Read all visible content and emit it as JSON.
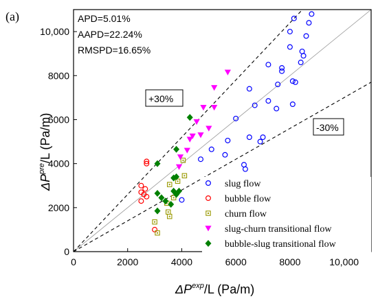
{
  "panel_label": "(a)",
  "stats": {
    "apd": "APD=5.01%",
    "aapd": "AAPD=22.24%",
    "rmspd": "RMSPD=16.65%"
  },
  "band_labels": {
    "upper": "+30%",
    "lower": "-30%"
  },
  "axes": {
    "x_label": {
      "prefix": "ΔP",
      "sup": "exp",
      "suffix": "/L (Pa/m)"
    },
    "y_label": {
      "prefix": "ΔP",
      "sup": "pre",
      "suffix": "/L (Pa/m)"
    }
  },
  "chart_data": {
    "type": "scatter",
    "xlim": [
      0,
      11000
    ],
    "ylim": [
      0,
      11000
    ],
    "x_ticks": [
      0,
      2000,
      4000,
      6000,
      8000,
      10000
    ],
    "y_ticks": [
      0,
      2000,
      4000,
      6000,
      8000,
      10000
    ],
    "x_tick_labels": [
      "0",
      "2000",
      "4000",
      "6000",
      "8000",
      "10,000"
    ],
    "y_tick_labels": [
      "0",
      "2000",
      "4000",
      "6000",
      "8000",
      "10,000"
    ],
    "reference_lines": [
      {
        "label": "",
        "slope": 1.0,
        "style": "solid"
      },
      {
        "label": "+30%",
        "slope": 1.3,
        "style": "dashed"
      },
      {
        "label": "-30%",
        "slope": 0.7,
        "style": "dashed"
      }
    ],
    "legend_position": "bottom-right",
    "series": [
      {
        "name": "slug flow",
        "marker": "circle-open",
        "color": "#0000ff",
        "points": [
          [
            4000,
            2350
          ],
          [
            4900,
            3100
          ],
          [
            5100,
            3150
          ],
          [
            4700,
            4200
          ],
          [
            5100,
            4650
          ],
          [
            5600,
            4400
          ],
          [
            5700,
            5050
          ],
          [
            6000,
            6050
          ],
          [
            6300,
            3950
          ],
          [
            6350,
            3750
          ],
          [
            6500,
            5200
          ],
          [
            6500,
            7400
          ],
          [
            6700,
            6650
          ],
          [
            6900,
            5000
          ],
          [
            7000,
            5200
          ],
          [
            7200,
            6850
          ],
          [
            7200,
            8500
          ],
          [
            7500,
            6500
          ],
          [
            7550,
            7600
          ],
          [
            7700,
            8350
          ],
          [
            7700,
            8200
          ],
          [
            8000,
            9300
          ],
          [
            8100,
            7750
          ],
          [
            8100,
            6700
          ],
          [
            8200,
            7700
          ],
          [
            8400,
            8600
          ],
          [
            8450,
            9100
          ],
          [
            8500,
            8900
          ],
          [
            8600,
            9800
          ],
          [
            8000,
            10000
          ],
          [
            8150,
            10600
          ],
          [
            8700,
            10400
          ],
          [
            8800,
            10800
          ]
        ]
      },
      {
        "name": "bubble flow",
        "marker": "circle-open",
        "color": "#ff0000",
        "points": [
          [
            2500,
            2300
          ],
          [
            2500,
            3000
          ],
          [
            2500,
            2700
          ],
          [
            2600,
            2600
          ],
          [
            2650,
            2850
          ],
          [
            2700,
            2500
          ],
          [
            2700,
            4000
          ],
          [
            2700,
            4100
          ],
          [
            3000,
            1000
          ]
        ]
      },
      {
        "name": "churn flow",
        "marker": "square-open",
        "color": "#999900",
        "points": [
          [
            3000,
            1350
          ],
          [
            3100,
            850
          ],
          [
            3450,
            2200
          ],
          [
            3500,
            1800
          ],
          [
            3550,
            1600
          ],
          [
            3550,
            3050
          ],
          [
            3700,
            2450
          ],
          [
            3850,
            3200
          ],
          [
            4050,
            4150
          ],
          [
            4100,
            3450
          ]
        ]
      },
      {
        "name": "slug-churn transitional flow",
        "marker": "triangle-down",
        "color": "#ff00ff",
        "points": [
          [
            3900,
            3850
          ],
          [
            3950,
            4300
          ],
          [
            4200,
            4600
          ],
          [
            4300,
            5100
          ],
          [
            4400,
            5250
          ],
          [
            4550,
            5900
          ],
          [
            4700,
            5300
          ],
          [
            4800,
            6550
          ],
          [
            5000,
            5600
          ],
          [
            5200,
            6550
          ],
          [
            5200,
            7450
          ],
          [
            5700,
            8150
          ]
        ]
      },
      {
        "name": "bubble-slug transitional flow",
        "marker": "diamond",
        "color": "#008000",
        "points": [
          [
            3100,
            2650
          ],
          [
            3100,
            1850
          ],
          [
            3100,
            4000
          ],
          [
            3250,
            2450
          ],
          [
            3400,
            2300
          ],
          [
            3600,
            2150
          ],
          [
            3700,
            2750
          ],
          [
            3700,
            3350
          ],
          [
            3800,
            2600
          ],
          [
            3800,
            3400
          ],
          [
            3800,
            4650
          ],
          [
            3900,
            2750
          ],
          [
            4300,
            6100
          ]
        ]
      }
    ]
  }
}
